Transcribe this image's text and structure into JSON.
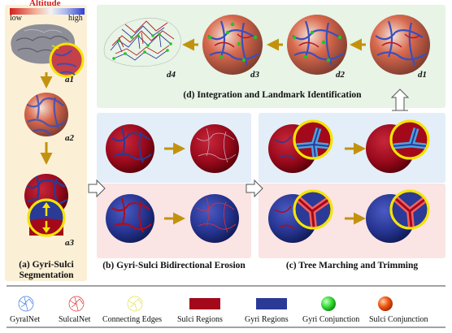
{
  "colors": {
    "panel_a_bg": "#fbf0d6",
    "panel_b_top_bg": "#e3eef9",
    "panel_b_bot_bg": "#fbe4e4",
    "panel_d_bg": "#e7f4e6",
    "sulci_red": "#a3091a",
    "gyri_blue": "#2a3a96",
    "gyri_green": "#21c421",
    "sulci_orange": "#e8410a",
    "arrow_gold": "#c3920d",
    "highlight_yellow": "#f5e400"
  },
  "altitude_bar": {
    "title": "Altitude",
    "low": "low",
    "high": "high"
  },
  "labels": {
    "a1": "a1",
    "a2": "a2",
    "a3": "a3",
    "d1": "d1",
    "d2": "d2",
    "d3": "d3",
    "d4": "d4"
  },
  "captions": {
    "a": "(a) Gyri-Sulci Segmentation",
    "b": "(b) Gyri-Sulci Bidirectional Erosion",
    "c": "(c) Tree Marching and Trimming",
    "d": "(d) Integration and Landmark Identification"
  },
  "legend": [
    {
      "label": "GyralNet",
      "icon": "gyralnet-icon"
    },
    {
      "label": "SulcalNet",
      "icon": "sulcalnet-icon"
    },
    {
      "label": "Connecting Edges",
      "icon": "connecting-edges-icon"
    },
    {
      "label": "Sulci Regions",
      "icon": "sulci-regions-swatch"
    },
    {
      "label": "Gyri Regions",
      "icon": "gyri-regions-swatch"
    },
    {
      "label": "Gyri Conjunction",
      "icon": "gyri-conjunction-dot"
    },
    {
      "label": "Sulci Conjunction",
      "icon": "sulci-conjunction-dot"
    }
  ]
}
